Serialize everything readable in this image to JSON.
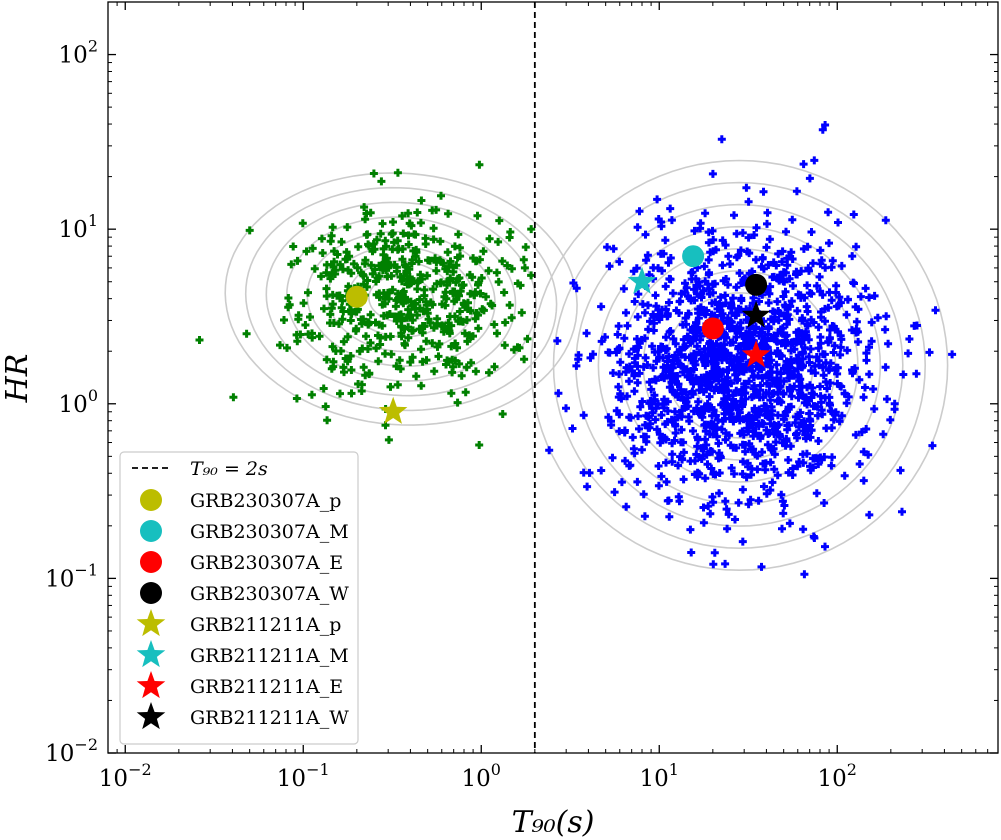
{
  "chart_data": {
    "type": "scatter",
    "xlabel": "T₉₀(s)",
    "ylabel": "HR",
    "x_scale": "log",
    "y_scale": "log",
    "xlim": [
      0.008,
      800
    ],
    "ylim": [
      0.01,
      200
    ],
    "x_ticks": [
      {
        "value": 0.01,
        "base": "10",
        "exp": "−2"
      },
      {
        "value": 0.1,
        "base": "10",
        "exp": "−1"
      },
      {
        "value": 1,
        "base": "10",
        "exp": "0"
      },
      {
        "value": 10,
        "base": "10",
        "exp": "1"
      },
      {
        "value": 100,
        "base": "10",
        "exp": "2"
      }
    ],
    "y_ticks": [
      {
        "value": 0.01,
        "base": "10",
        "exp": "−2"
      },
      {
        "value": 0.1,
        "base": "10",
        "exp": "−1"
      },
      {
        "value": 1,
        "base": "10",
        "exp": "0"
      },
      {
        "value": 10,
        "base": "10",
        "exp": "1"
      },
      {
        "value": 100,
        "base": "10",
        "exp": "2"
      }
    ],
    "grid": false,
    "legend_position": "lower-left",
    "divider": {
      "x": 2,
      "label": "T₉₀ = 2s",
      "style": "dashed",
      "color": "#000000"
    },
    "populations": [
      {
        "color": "#008000",
        "marker": "plus",
        "n": 520,
        "logx_mean": -0.45,
        "logx_sd": 0.33,
        "logy_mean": 0.6,
        "logy_sd": 0.24,
        "x_max": 2.9
      },
      {
        "color": "#0000ff",
        "marker": "plus",
        "n": 1450,
        "logx_mean": 1.45,
        "logx_sd": 0.36,
        "logy_mean": 0.22,
        "logy_sd": 0.38,
        "x_min": 1.9
      }
    ],
    "series": [
      {
        "name": "GRB230307A_p",
        "marker": "circle",
        "color": "#bcbd00",
        "x": 0.2,
        "y": 4.1
      },
      {
        "name": "GRB230307A_M",
        "marker": "circle",
        "color": "#17bfbf",
        "x": 15.5,
        "y": 7.0
      },
      {
        "name": "GRB230307A_E",
        "marker": "circle",
        "color": "#ff0000",
        "x": 20,
        "y": 2.7
      },
      {
        "name": "GRB230307A_W",
        "marker": "circle",
        "color": "#000000",
        "x": 35,
        "y": 4.8
      },
      {
        "name": "GRB211211A_p",
        "marker": "star",
        "color": "#bcbd00",
        "x": 0.32,
        "y": 0.9
      },
      {
        "name": "GRB211211A_M",
        "marker": "star",
        "color": "#17bfbf",
        "x": 8,
        "y": 5.0
      },
      {
        "name": "GRB211211A_E",
        "marker": "star",
        "color": "#ff0000",
        "x": 35,
        "y": 1.9
      },
      {
        "name": "GRB211211A_W",
        "marker": "star",
        "color": "#000000",
        "x": 35,
        "y": 3.2
      }
    ],
    "contour_color": "#cccccc"
  }
}
